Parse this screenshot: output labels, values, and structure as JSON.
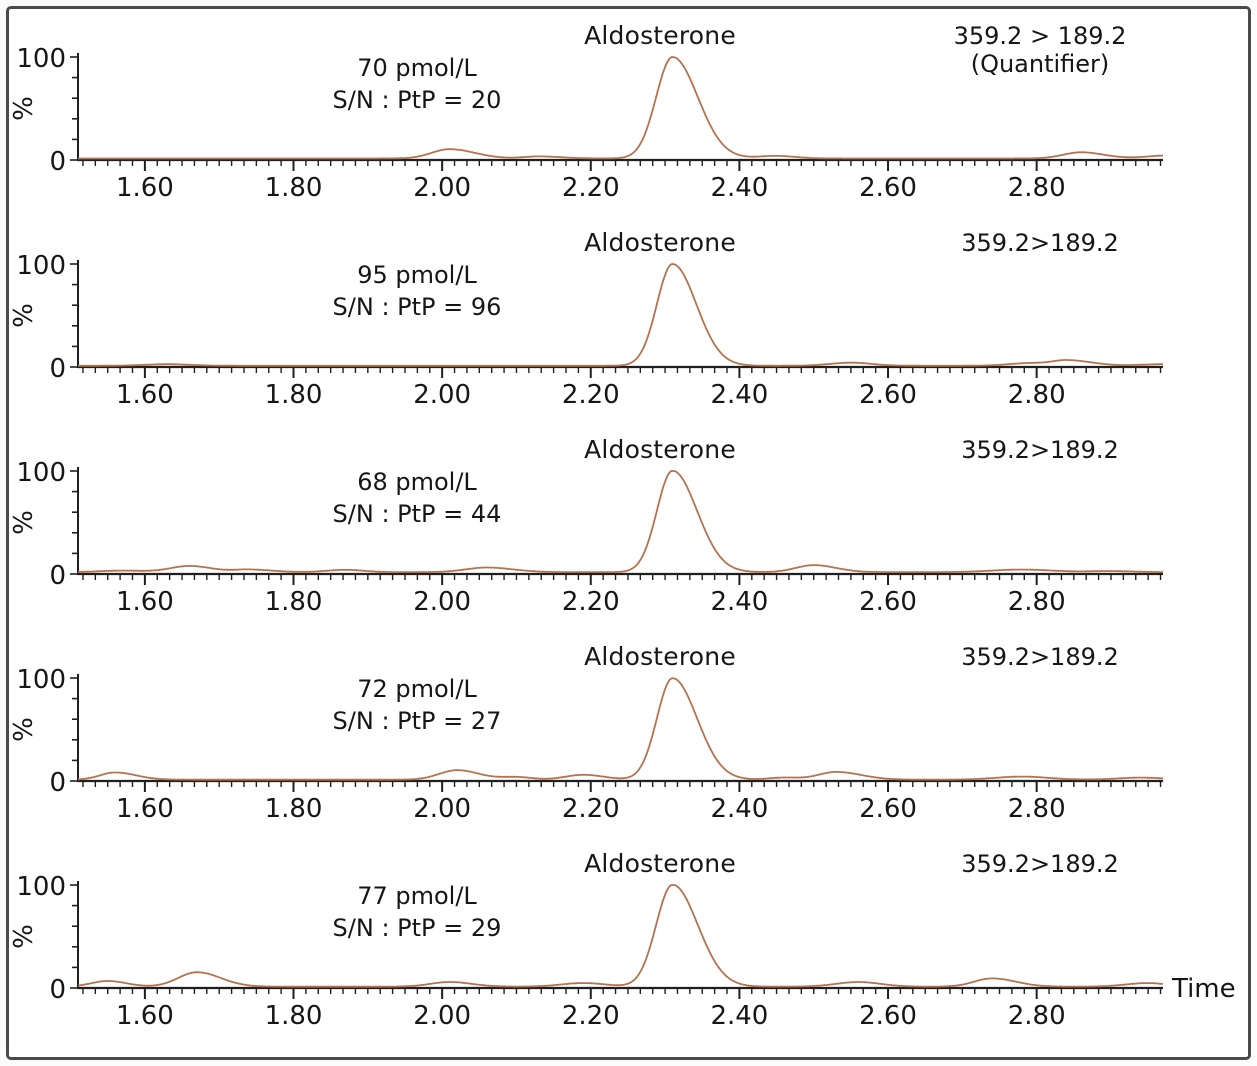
{
  "figure": {
    "trace_color": "#b4734e",
    "axis_color": "#1f1f1f",
    "border_color": "#4a4a4a",
    "background": "#ffffff",
    "peaks_format": "[time_min, height_pct, sigma_left, sigma_right]"
  },
  "chart_data": [
    {
      "type": "line",
      "title": "Aldosterone",
      "transition": "359.2 > 189.2",
      "transition_note": "(Quantifier)",
      "concentration": "70 pmol/L",
      "signal_to_noise": "S/N : PtP = 20",
      "ylabel": "%",
      "xlabel": "",
      "xlim": [
        1.51,
        2.97
      ],
      "ylim": [
        0,
        100
      ],
      "xticks": [
        {
          "v": 1.6,
          "label": "1.60"
        },
        {
          "v": 1.8,
          "label": "1.80"
        },
        {
          "v": 2.0,
          "label": "2.00"
        },
        {
          "v": 2.2,
          "label": "2.20"
        },
        {
          "v": 2.4,
          "label": "2.40"
        },
        {
          "v": 2.6,
          "label": "2.60"
        },
        {
          "v": 2.8,
          "label": "2.80"
        }
      ],
      "yticks": [
        {
          "v": 100,
          "label": "100"
        },
        {
          "v": 0,
          "label": "0"
        }
      ],
      "main_peak_time": 2.31,
      "baseline_pct": 1.5,
      "peaks": [
        [
          2.01,
          9,
          0.024,
          0.034
        ],
        [
          2.13,
          2,
          0.02,
          0.03
        ],
        [
          2.31,
          98.5,
          0.022,
          0.034
        ],
        [
          2.45,
          2.5,
          0.025,
          0.025
        ],
        [
          2.86,
          6,
          0.024,
          0.03
        ],
        [
          2.98,
          3,
          0.03,
          0.02
        ]
      ]
    },
    {
      "type": "line",
      "title": "Aldosterone",
      "transition": "359.2>189.2",
      "transition_note": "",
      "concentration": "95 pmol/L",
      "signal_to_noise": "S/N : PtP = 96",
      "ylabel": "%",
      "xlabel": "",
      "xlim": [
        1.51,
        2.97
      ],
      "ylim": [
        0,
        100
      ],
      "xticks": [
        {
          "v": 1.6,
          "label": "1.60"
        },
        {
          "v": 1.8,
          "label": "1.80"
        },
        {
          "v": 2.0,
          "label": "2.00"
        },
        {
          "v": 2.2,
          "label": "2.20"
        },
        {
          "v": 2.4,
          "label": "2.40"
        },
        {
          "v": 2.6,
          "label": "2.60"
        },
        {
          "v": 2.8,
          "label": "2.80"
        }
      ],
      "yticks": [
        {
          "v": 100,
          "label": "100"
        },
        {
          "v": 0,
          "label": "0"
        }
      ],
      "main_peak_time": 2.31,
      "baseline_pct": 1.2,
      "peaks": [
        [
          1.63,
          1.5,
          0.03,
          0.03
        ],
        [
          2.31,
          98.8,
          0.021,
          0.032
        ],
        [
          2.55,
          3,
          0.028,
          0.028
        ],
        [
          2.79,
          2.5,
          0.028,
          0.02
        ],
        [
          2.84,
          5.5,
          0.02,
          0.033
        ],
        [
          2.97,
          1.5,
          0.03,
          0.02
        ]
      ]
    },
    {
      "type": "line",
      "title": "Aldosterone",
      "transition": "359.2>189.2",
      "transition_note": "",
      "concentration": "68 pmol/L",
      "signal_to_noise": "S/N : PtP = 44",
      "ylabel": "%",
      "xlabel": "",
      "xlim": [
        1.51,
        2.97
      ],
      "ylim": [
        0,
        100
      ],
      "xticks": [
        {
          "v": 1.6,
          "label": "1.60"
        },
        {
          "v": 1.8,
          "label": "1.80"
        },
        {
          "v": 2.0,
          "label": "2.00"
        },
        {
          "v": 2.2,
          "label": "2.20"
        },
        {
          "v": 2.4,
          "label": "2.40"
        },
        {
          "v": 2.6,
          "label": "2.60"
        },
        {
          "v": 2.8,
          "label": "2.80"
        }
      ],
      "yticks": [
        {
          "v": 100,
          "label": "100"
        },
        {
          "v": 0,
          "label": "0"
        }
      ],
      "main_peak_time": 2.31,
      "baseline_pct": 1.8,
      "peaks": [
        [
          1.57,
          1.5,
          0.03,
          0.03
        ],
        [
          1.66,
          6,
          0.026,
          0.03
        ],
        [
          1.74,
          2.5,
          0.02,
          0.03
        ],
        [
          1.87,
          2.2,
          0.025,
          0.025
        ],
        [
          2.06,
          4.5,
          0.028,
          0.035
        ],
        [
          2.31,
          98.5,
          0.021,
          0.033
        ],
        [
          2.5,
          6.8,
          0.024,
          0.03
        ],
        [
          2.78,
          2.5,
          0.04,
          0.04
        ],
        [
          2.9,
          1,
          0.03,
          0.03
        ]
      ]
    },
    {
      "type": "line",
      "title": "Aldosterone",
      "transition": "359.2>189.2",
      "transition_note": "",
      "concentration": "72 pmol/L",
      "signal_to_noise": "S/N : PtP = 27",
      "ylabel": "%",
      "xlabel": "",
      "xlim": [
        1.51,
        2.97
      ],
      "ylim": [
        0,
        100
      ],
      "xticks": [
        {
          "v": 1.6,
          "label": "1.60"
        },
        {
          "v": 1.8,
          "label": "1.80"
        },
        {
          "v": 2.0,
          "label": "2.00"
        },
        {
          "v": 2.2,
          "label": "2.20"
        },
        {
          "v": 2.4,
          "label": "2.40"
        },
        {
          "v": 2.6,
          "label": "2.60"
        },
        {
          "v": 2.8,
          "label": "2.80"
        }
      ],
      "yticks": [
        {
          "v": 100,
          "label": "100"
        },
        {
          "v": 0,
          "label": "0"
        }
      ],
      "main_peak_time": 2.31,
      "baseline_pct": 1.3,
      "peaks": [
        [
          1.56,
          7,
          0.02,
          0.028
        ],
        [
          2.02,
          9.2,
          0.024,
          0.03
        ],
        [
          2.1,
          2.5,
          0.02,
          0.02
        ],
        [
          2.19,
          4.7,
          0.024,
          0.028
        ],
        [
          2.31,
          98.5,
          0.021,
          0.033
        ],
        [
          2.46,
          2,
          0.02,
          0.02
        ],
        [
          2.53,
          7.5,
          0.024,
          0.034
        ],
        [
          2.78,
          3,
          0.035,
          0.035
        ],
        [
          2.94,
          2,
          0.03,
          0.03
        ]
      ]
    },
    {
      "type": "line",
      "title": "Aldosterone",
      "transition": "359.2>189.2",
      "transition_note": "",
      "concentration": "77 pmol/L",
      "signal_to_noise": "S/N : PtP = 29",
      "ylabel": "%",
      "xlabel": "Time",
      "xlim": [
        1.51,
        2.97
      ],
      "ylim": [
        0,
        100
      ],
      "xticks": [
        {
          "v": 1.6,
          "label": "1.60"
        },
        {
          "v": 1.8,
          "label": "1.80"
        },
        {
          "v": 2.0,
          "label": "2.00"
        },
        {
          "v": 2.2,
          "label": "2.20"
        },
        {
          "v": 2.4,
          "label": "2.40"
        },
        {
          "v": 2.6,
          "label": "2.60"
        },
        {
          "v": 2.8,
          "label": "2.80"
        }
      ],
      "yticks": [
        {
          "v": 100,
          "label": "100"
        },
        {
          "v": 0,
          "label": "0"
        }
      ],
      "main_peak_time": 2.31,
      "baseline_pct": 1.3,
      "peaks": [
        [
          1.55,
          5.5,
          0.022,
          0.025
        ],
        [
          1.67,
          14,
          0.025,
          0.032
        ],
        [
          2.01,
          4.5,
          0.026,
          0.03
        ],
        [
          2.19,
          3.5,
          0.03,
          0.03
        ],
        [
          2.31,
          99,
          0.022,
          0.034
        ],
        [
          2.56,
          4.5,
          0.03,
          0.03
        ],
        [
          2.74,
          8,
          0.024,
          0.032
        ],
        [
          2.95,
          3.5,
          0.03,
          0.025
        ]
      ]
    }
  ]
}
